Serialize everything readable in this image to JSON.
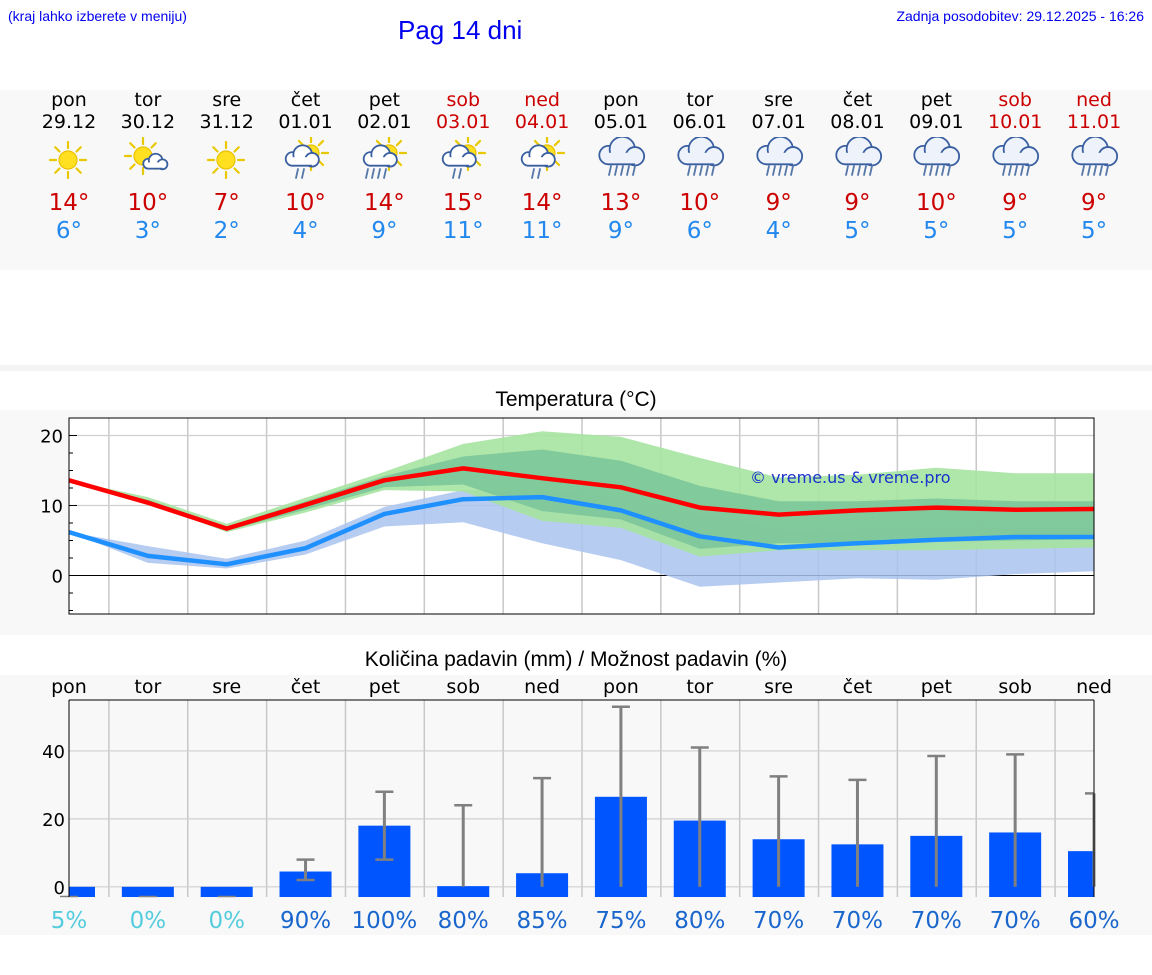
{
  "header": {
    "left_note": "(kraj lahko izberete v meniju)",
    "title": "Pag 14 dni",
    "updated": "Zadnja posodobitev: 29.12.2025 - 16:26"
  },
  "colors": {
    "max_temp": "#cc0000",
    "min_temp": "#2288ee",
    "max_line": "#ff0000",
    "min_line": "#1e90ff",
    "max_band_outer": "#a6e3a0",
    "max_band_inner": "#7cc79a",
    "min_band": "#a9c3ef",
    "bar": "#0055ff",
    "errbar": "#808080",
    "pct_low": "#55ccdd",
    "pct_high": "#1a66cc"
  },
  "days": [
    {
      "name": "pon",
      "date": "29.12",
      "icon": "sun-icon",
      "tmax": "14°",
      "tmin": "6°",
      "weekend": false
    },
    {
      "name": "tor",
      "date": "30.12",
      "icon": "sun-cloud-icon",
      "tmax": "10°",
      "tmin": "3°",
      "weekend": false
    },
    {
      "name": "sre",
      "date": "31.12",
      "icon": "sun-icon",
      "tmax": "7°",
      "tmin": "2°",
      "weekend": false
    },
    {
      "name": "čet",
      "date": "01.01",
      "icon": "sun-rain-icon",
      "tmax": "10°",
      "tmin": "4°",
      "weekend": false
    },
    {
      "name": "pet",
      "date": "02.01",
      "icon": "sun-heavy-rain-icon",
      "tmax": "14°",
      "tmin": "9°",
      "weekend": false
    },
    {
      "name": "sob",
      "date": "03.01",
      "icon": "sun-rain-icon",
      "tmax": "15°",
      "tmin": "11°",
      "weekend": true
    },
    {
      "name": "ned",
      "date": "04.01",
      "icon": "sun-rain-icon",
      "tmax": "14°",
      "tmin": "11°",
      "weekend": true
    },
    {
      "name": "pon",
      "date": "05.01",
      "icon": "rain-cloud-icon",
      "tmax": "13°",
      "tmin": "9°",
      "weekend": false
    },
    {
      "name": "tor",
      "date": "06.01",
      "icon": "rain-cloud-icon",
      "tmax": "10°",
      "tmin": "6°",
      "weekend": false
    },
    {
      "name": "sre",
      "date": "07.01",
      "icon": "rain-cloud-icon",
      "tmax": "9°",
      "tmin": "4°",
      "weekend": false
    },
    {
      "name": "čet",
      "date": "08.01",
      "icon": "rain-cloud-icon",
      "tmax": "9°",
      "tmin": "5°",
      "weekend": false
    },
    {
      "name": "pet",
      "date": "09.01",
      "icon": "rain-cloud-icon",
      "tmax": "10°",
      "tmin": "5°",
      "weekend": false
    },
    {
      "name": "sob",
      "date": "10.01",
      "icon": "rain-cloud-icon",
      "tmax": "9°",
      "tmin": "5°",
      "weekend": true
    },
    {
      "name": "ned",
      "date": "11.01",
      "icon": "rain-cloud-icon",
      "tmax": "9°",
      "tmin": "5°",
      "weekend": true
    }
  ],
  "chart_data": [
    {
      "type": "line",
      "title": "Temperatura (°C)",
      "watermark": "© vreme.us & vreme.pro",
      "xlabel": "",
      "ylabel": "",
      "x_days": 14,
      "ylim": [
        -5.5,
        22.5
      ],
      "yticks": [
        "0",
        "10",
        "20"
      ],
      "ytick_values": [
        0,
        10,
        20
      ],
      "series": [
        {
          "name": "max",
          "values": [
            13.6,
            10.4,
            6.7,
            10.1,
            13.6,
            15.3,
            13.9,
            12.6,
            9.7,
            8.7,
            9.3,
            9.7,
            9.4,
            9.5
          ]
        },
        {
          "name": "min",
          "values": [
            6.2,
            2.8,
            1.6,
            3.9,
            8.8,
            10.9,
            11.2,
            9.3,
            5.6,
            4.0,
            4.6,
            5.1,
            5.5,
            5.5
          ]
        }
      ],
      "bands": [
        {
          "name": "max_range_outer",
          "low": [
            13.6,
            10.4,
            6.2,
            9.0,
            12.2,
            12.0,
            7.8,
            6.8,
            2.7,
            3.6,
            3.6,
            3.6,
            3.8,
            4.0
          ],
          "high": [
            13.6,
            11.2,
            7.4,
            11.1,
            14.8,
            18.8,
            20.6,
            19.8,
            16.8,
            14.0,
            14.4,
            15.4,
            14.6,
            14.6
          ]
        },
        {
          "name": "max_range_inner",
          "low": [
            13.6,
            10.4,
            6.4,
            9.4,
            12.6,
            13.0,
            9.2,
            8.0,
            3.8,
            4.6,
            4.6,
            4.8,
            5.0,
            5.2
          ],
          "high": [
            13.6,
            10.8,
            7.0,
            10.6,
            14.2,
            17.0,
            18.0,
            16.4,
            12.8,
            10.6,
            10.6,
            11.0,
            10.6,
            10.6
          ]
        },
        {
          "name": "min_range",
          "low": [
            6.2,
            1.8,
            1.0,
            3.0,
            7.0,
            7.6,
            4.6,
            2.2,
            -1.6,
            -1.0,
            -0.4,
            -0.6,
            0.2,
            0.6
          ],
          "high": [
            6.2,
            4.2,
            2.4,
            5.0,
            9.8,
            12.2,
            12.2,
            11.0,
            8.8,
            6.6,
            6.6,
            7.0,
            7.0,
            7.0
          ]
        }
      ]
    },
    {
      "type": "bar",
      "title": "Količina padavin (mm) / Možnost padavin (%)",
      "categories": [
        "pon",
        "tor",
        "sre",
        "čet",
        "pet",
        "sob",
        "ned",
        "pon",
        "tor",
        "sre",
        "čet",
        "pet",
        "sob",
        "ned"
      ],
      "ylim": [
        -3,
        55
      ],
      "yticks": [
        "0",
        "20",
        "40"
      ],
      "ytick_values": [
        0,
        20,
        40
      ],
      "values": [
        0,
        0,
        0,
        4.5,
        18.0,
        0.2,
        4.0,
        26.5,
        19.5,
        14.0,
        12.5,
        15.0,
        16.0,
        10.5
      ],
      "err_low": [
        0,
        0,
        0,
        2.0,
        8.0,
        0,
        0,
        0,
        0,
        0,
        0,
        0,
        0,
        0
      ],
      "err_high": [
        0,
        0,
        0,
        8.0,
        28.0,
        24.0,
        32.0,
        53.0,
        41.0,
        32.5,
        31.5,
        38.5,
        39.0,
        27.5
      ],
      "probabilities": [
        "5%",
        "0%",
        "0%",
        "90%",
        "100%",
        "80%",
        "85%",
        "75%",
        "80%",
        "70%",
        "70%",
        "70%",
        "70%",
        "60%"
      ],
      "probability_values": [
        5,
        0,
        0,
        90,
        100,
        80,
        85,
        75,
        80,
        70,
        70,
        70,
        70,
        60
      ]
    }
  ]
}
